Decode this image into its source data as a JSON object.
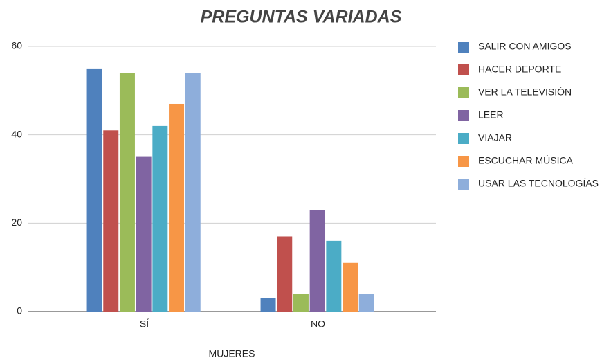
{
  "chart_data": {
    "type": "bar",
    "title": "PREGUNTAS VARIADAS",
    "x_label": "MUJERES",
    "categories": [
      "SÍ",
      "NO"
    ],
    "series": [
      {
        "name": "SALIR CON AMIGOS",
        "color": "#4f81bd",
        "values": [
          55,
          3
        ]
      },
      {
        "name": "HACER DEPORTE",
        "color": "#c0504d",
        "values": [
          41,
          17
        ]
      },
      {
        "name": "VER LA TELEVISIÓN",
        "color": "#9bbb59",
        "values": [
          54,
          4
        ]
      },
      {
        "name": "LEER",
        "color": "#8064a2",
        "values": [
          35,
          23
        ]
      },
      {
        "name": "VIAJAR",
        "color": "#4bacc6",
        "values": [
          42,
          16
        ]
      },
      {
        "name": "ESCUCHAR MÚSICA",
        "color": "#f79646",
        "values": [
          47,
          11
        ]
      },
      {
        "name": "USAR LAS TECNOLOGÍAS",
        "color": "#8eaedb",
        "values": [
          54,
          4
        ]
      }
    ],
    "ylim": [
      0,
      60
    ],
    "yticks": [
      0,
      20,
      40,
      60
    ],
    "grid": true,
    "legend": "right"
  }
}
